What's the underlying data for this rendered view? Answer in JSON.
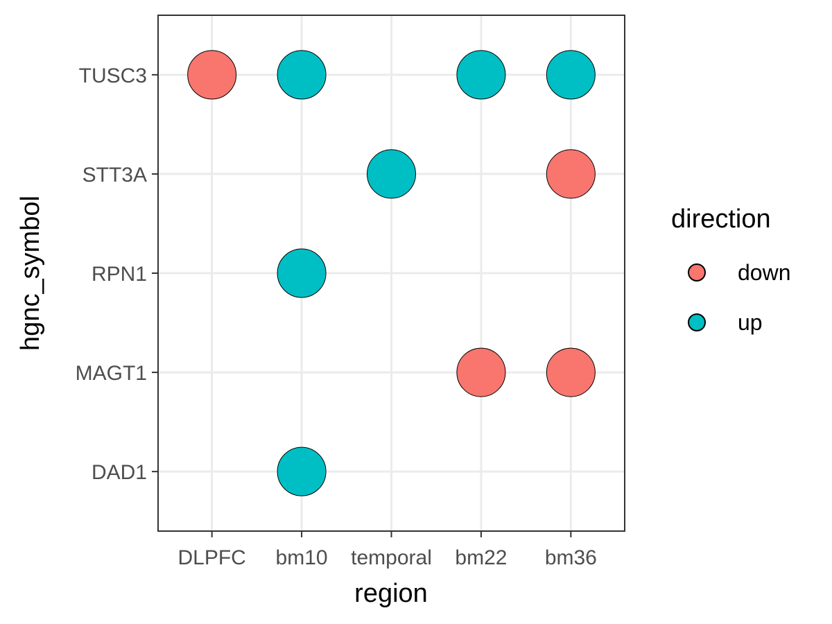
{
  "chart_data": {
    "type": "scatter",
    "x_label": "region",
    "y_label": "hgnc_symbol",
    "x_categories": [
      "DLPFC",
      "bm10",
      "temporal",
      "bm22",
      "bm36"
    ],
    "y_categories": [
      "DAD1",
      "MAGT1",
      "RPN1",
      "STT3A",
      "TUSC3"
    ],
    "grid": true,
    "legend": {
      "title": "direction",
      "position": "right",
      "entries": [
        {
          "label": "down",
          "color": "#F8766D"
        },
        {
          "label": "up",
          "color": "#00BFC4"
        }
      ]
    },
    "points": [
      {
        "x": "DLPFC",
        "y": "TUSC3",
        "direction": "down"
      },
      {
        "x": "bm10",
        "y": "TUSC3",
        "direction": "up"
      },
      {
        "x": "bm22",
        "y": "TUSC3",
        "direction": "up"
      },
      {
        "x": "bm36",
        "y": "TUSC3",
        "direction": "up"
      },
      {
        "x": "temporal",
        "y": "STT3A",
        "direction": "up"
      },
      {
        "x": "bm36",
        "y": "STT3A",
        "direction": "down"
      },
      {
        "x": "bm10",
        "y": "RPN1",
        "direction": "up"
      },
      {
        "x": "bm22",
        "y": "MAGT1",
        "direction": "down"
      },
      {
        "x": "bm36",
        "y": "MAGT1",
        "direction": "down"
      },
      {
        "x": "bm10",
        "y": "DAD1",
        "direction": "up"
      }
    ]
  }
}
